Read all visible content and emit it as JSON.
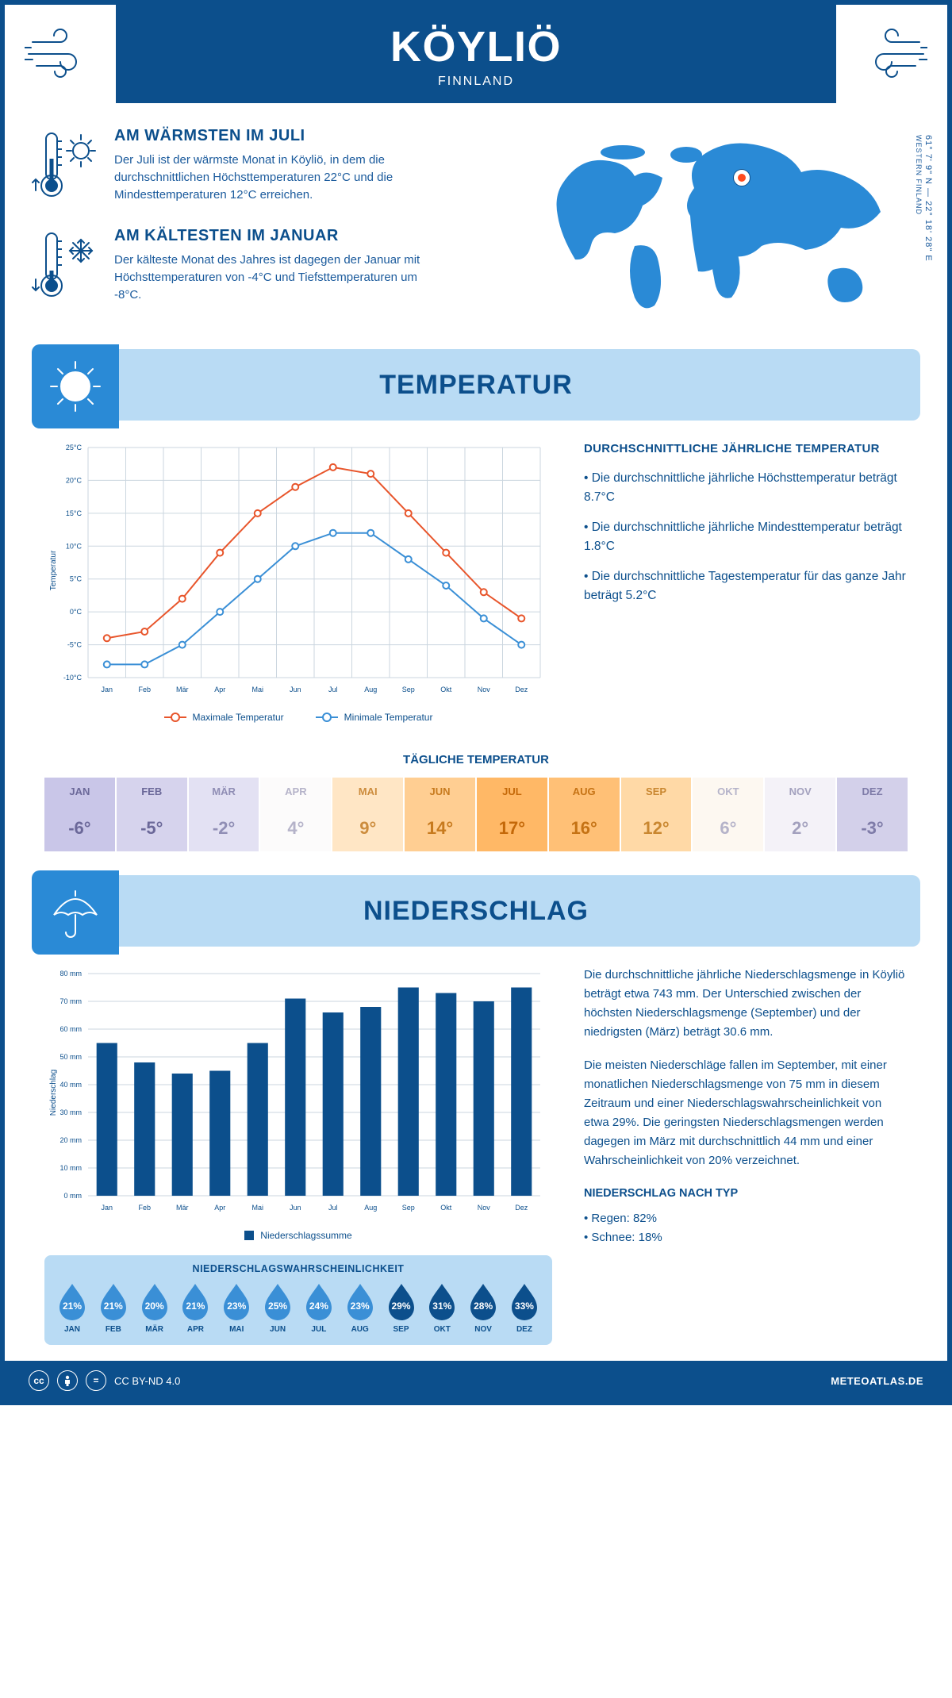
{
  "header": {
    "title": "KÖYLIÖ",
    "subtitle": "FINNLAND"
  },
  "intro": {
    "warmest": {
      "heading": "AM WÄRMSTEN IM JULI",
      "text": "Der Juli ist der wärmste Monat in Köyliö, in dem die durchschnittlichen Höchsttemperaturen 22°C und die Mindesttemperaturen 12°C erreichen."
    },
    "coldest": {
      "heading": "AM KÄLTESTEN IM JANUAR",
      "text": "Der kälteste Monat des Jahres ist dagegen der Januar mit Höchsttemperaturen von -4°C und Tiefsttemperaturen um -8°C."
    },
    "coords": "61° 7' 9\" N — 22° 18' 28\" E",
    "region": "WESTERN FINLAND",
    "pin": {
      "left_pct": 51,
      "top_pct": 22
    }
  },
  "colors": {
    "primary": "#0c4f8c",
    "banner_bg": "#b9dbf4",
    "banner_tab": "#2a8ad6",
    "line_max": "#e8552b",
    "line_min": "#3a8fd6",
    "grid": "#cbd6df",
    "drop_light": "#3a8fd6",
    "drop_dark": "#0c4f8c"
  },
  "months": [
    "Jan",
    "Feb",
    "Mär",
    "Apr",
    "Mai",
    "Jun",
    "Jul",
    "Aug",
    "Sep",
    "Okt",
    "Nov",
    "Dez"
  ],
  "months_upper": [
    "JAN",
    "FEB",
    "MÄR",
    "APR",
    "MAI",
    "JUN",
    "JUL",
    "AUG",
    "SEP",
    "OKT",
    "NOV",
    "DEZ"
  ],
  "temperature": {
    "banner": "TEMPERATUR",
    "chart": {
      "type": "line",
      "ylabel": "Temperatur",
      "ylim": [
        -10,
        25
      ],
      "ytick_step": 5,
      "max_series": [
        -4,
        -3,
        2,
        9,
        15,
        19,
        22,
        21,
        15,
        9,
        3,
        -1
      ],
      "min_series": [
        -8,
        -8,
        -5,
        0,
        5,
        10,
        12,
        12,
        8,
        4,
        -1,
        -5
      ],
      "legend_max": "Maximale Temperatur",
      "legend_min": "Minimale Temperatur",
      "line_width": 2,
      "marker_radius": 4
    },
    "summary": {
      "heading": "DURCHSCHNITTLICHE JÄHRLICHE TEMPERATUR",
      "b1": "• Die durchschnittliche jährliche Höchsttemperatur beträgt 8.7°C",
      "b2": "• Die durchschnittliche jährliche Mindesttemperatur beträgt 1.8°C",
      "b3": "• Die durchschnittliche Tagestemperatur für das ganze Jahr beträgt 5.2°C"
    },
    "daily": {
      "heading": "TÄGLICHE TEMPERATUR",
      "values": [
        "-6°",
        "-5°",
        "-2°",
        "4°",
        "9°",
        "14°",
        "17°",
        "16°",
        "12°",
        "6°",
        "2°",
        "-3°"
      ],
      "colors": [
        "#c9c6e8",
        "#d6d3ed",
        "#e3e1f3",
        "#fcfbfb",
        "#ffe6c5",
        "#ffce92",
        "#ffb866",
        "#ffc076",
        "#ffd9a6",
        "#fdf8f1",
        "#f4f2f8",
        "#d3d0ea"
      ],
      "text_colors": [
        "#6b6899",
        "#6b6899",
        "#908eb5",
        "#b5b3c9",
        "#cc8c3d",
        "#c77a1e",
        "#c46808",
        "#c57214",
        "#c98730",
        "#b5b3c9",
        "#a3a1be",
        "#7e7ba8"
      ]
    }
  },
  "precip": {
    "banner": "NIEDERSCHLAG",
    "chart": {
      "type": "bar",
      "ylabel": "Niederschlag",
      "ylim": [
        0,
        80
      ],
      "ytick_step": 10,
      "values": [
        55,
        48,
        44,
        45,
        55,
        71,
        66,
        68,
        75,
        73,
        70,
        75
      ],
      "bar_color": "#0c4f8c",
      "bar_width": 0.55,
      "legend": "Niederschlagssumme"
    },
    "text": {
      "p1": "Die durchschnittliche jährliche Niederschlagsmenge in Köyliö beträgt etwa 743 mm. Der Unterschied zwischen der höchsten Niederschlagsmenge (September) und der niedrigsten (März) beträgt 30.6 mm.",
      "p2": "Die meisten Niederschläge fallen im September, mit einer monatlichen Niederschlagsmenge von 75 mm in diesem Zeitraum und einer Niederschlagswahrscheinlichkeit von etwa 29%. Die geringsten Niederschlagsmengen werden dagegen im März mit durchschnittlich 44 mm und einer Wahrscheinlichkeit von 20% verzeichnet.",
      "type_heading": "NIEDERSCHLAG NACH TYP",
      "type1": "• Regen: 82%",
      "type2": "• Schnee: 18%"
    },
    "prob": {
      "heading": "NIEDERSCHLAGSWAHRSCHEINLICHKEIT",
      "values": [
        "21%",
        "21%",
        "20%",
        "21%",
        "23%",
        "25%",
        "24%",
        "23%",
        "29%",
        "31%",
        "28%",
        "33%"
      ],
      "dark": [
        false,
        false,
        false,
        false,
        false,
        false,
        false,
        false,
        true,
        true,
        true,
        true
      ]
    }
  },
  "footer": {
    "license": "CC BY-ND 4.0",
    "site": "METEOATLAS.DE"
  }
}
